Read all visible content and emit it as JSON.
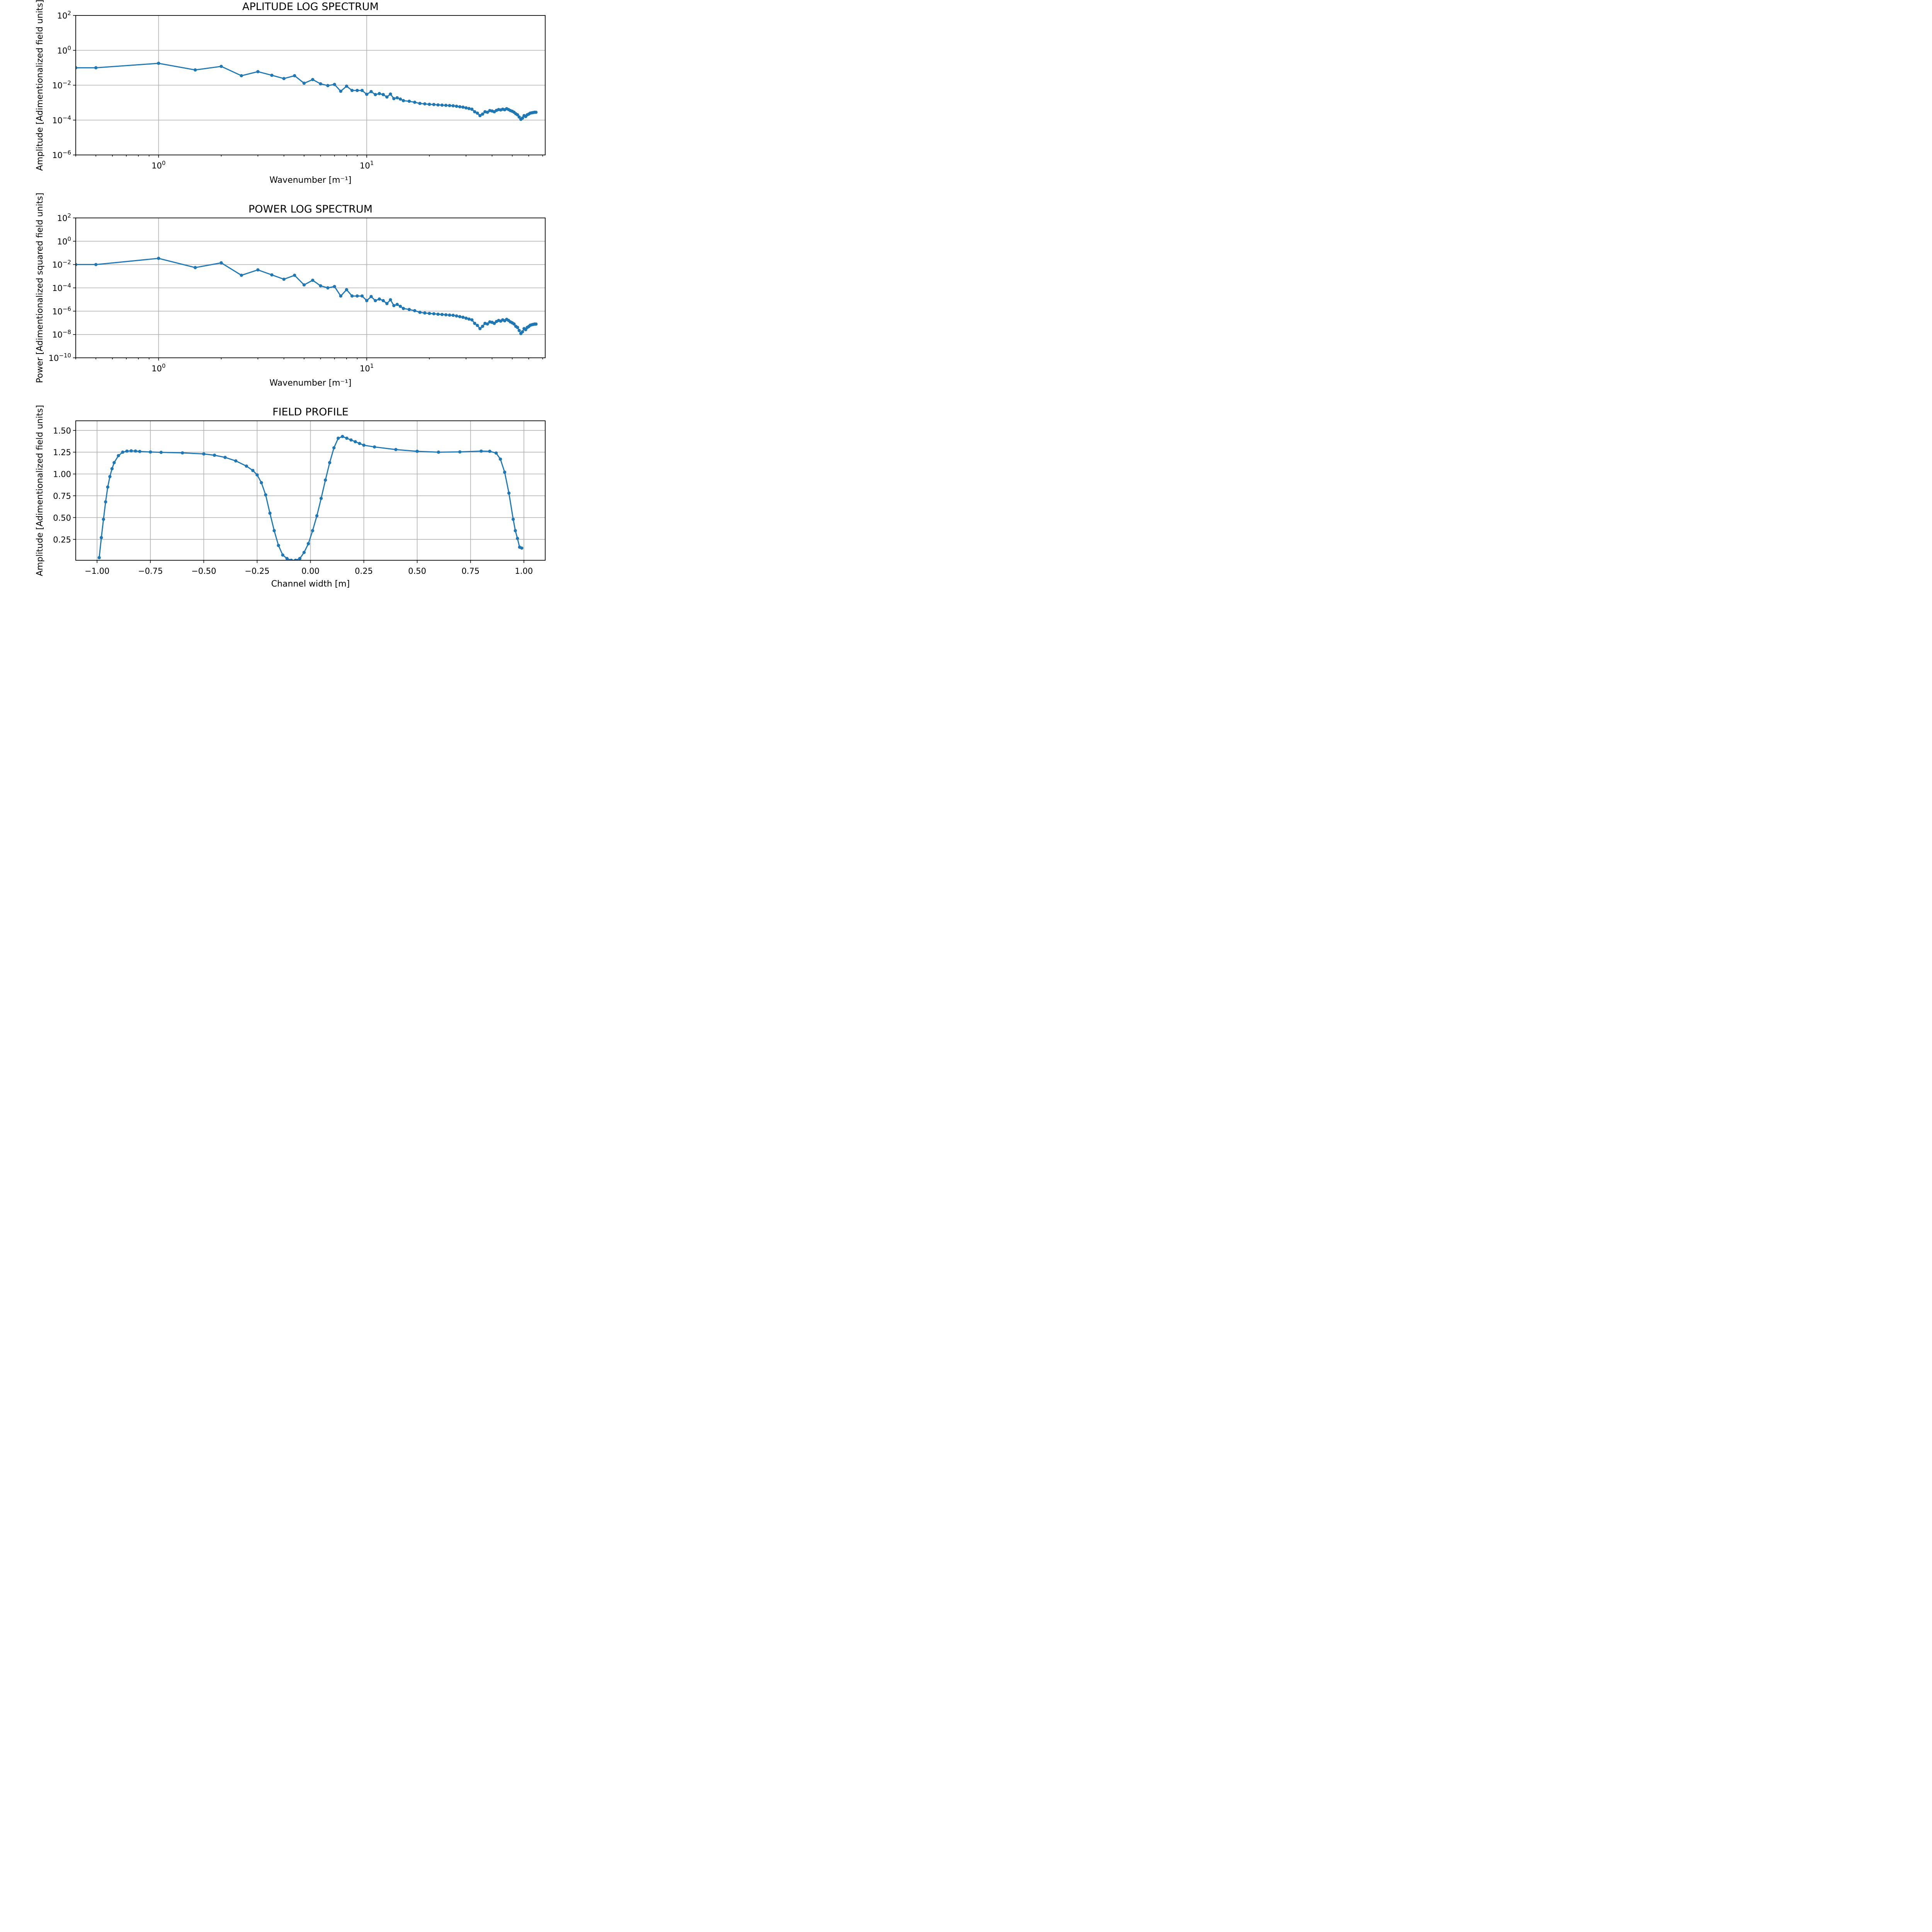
{
  "colors": {
    "series": "#1f77b4",
    "grid": "#b0b0b0"
  },
  "chart_data": [
    {
      "type": "line",
      "title": "APLITUDE LOG SPECTRUM",
      "xlabel": "Wavenumber [m⁻¹]",
      "ylabel": "Amplitude [Adimentionalized field units]",
      "xscale": "log",
      "yscale": "log",
      "xlim": [
        0.4,
        72
      ],
      "ylim": [
        1e-06,
        100
      ],
      "grid": true,
      "x_ticks": [
        1,
        10
      ],
      "x_ticklabels": [
        [
          "10",
          "0"
        ],
        [
          "10",
          "1"
        ]
      ],
      "y_ticks": [
        1e-06,
        0.0001,
        0.01,
        1,
        100
      ],
      "y_ticklabels": [
        [
          "10",
          "−6"
        ],
        [
          "10",
          "−4"
        ],
        [
          "10",
          "−2"
        ],
        [
          "10",
          "0"
        ],
        [
          "10",
          "2"
        ]
      ],
      "series": [
        {
          "x": [
            0.4,
            0.5,
            1.0,
            1.5,
            2.0,
            2.5,
            3.0,
            3.5,
            4.0,
            4.5,
            5.0,
            5.5,
            6.0,
            6.5,
            7.0,
            7.5,
            8.0,
            8.5,
            9.0,
            9.5,
            10,
            10.5,
            11,
            11.5,
            12,
            12.5,
            13,
            13.5,
            14,
            14.5,
            15,
            16,
            17,
            18,
            19,
            20,
            21,
            22,
            23,
            24,
            25,
            26,
            27,
            28,
            29,
            30,
            31,
            32,
            33,
            34,
            35,
            36,
            37,
            38,
            39,
            40,
            41,
            42,
            43,
            44,
            45,
            46,
            47,
            48,
            49,
            50,
            51,
            52,
            53,
            54,
            55,
            56,
            57,
            58,
            59,
            60,
            61,
            62,
            63,
            64,
            65
          ],
          "y": [
            0.1,
            0.1,
            0.18,
            0.075,
            0.12,
            0.035,
            0.06,
            0.037,
            0.024,
            0.035,
            0.013,
            0.021,
            0.012,
            0.0095,
            0.011,
            0.0045,
            0.0088,
            0.005,
            0.005,
            0.005,
            0.003,
            0.0043,
            0.0029,
            0.0033,
            0.0029,
            0.0021,
            0.0031,
            0.0017,
            0.0019,
            0.0016,
            0.0013,
            0.0012,
            0.00105,
            0.0009,
            0.00085,
            0.0008,
            0.00078,
            0.00074,
            0.00072,
            0.0007,
            0.00068,
            0.00066,
            0.00062,
            0.00058,
            0.00055,
            0.0005,
            0.00046,
            0.00042,
            0.0003,
            0.00025,
            0.00018,
            0.00022,
            0.0003,
            0.00028,
            0.00035,
            0.00033,
            0.0003,
            0.00036,
            0.0004,
            0.00038,
            0.00042,
            0.00039,
            0.00045,
            0.0004,
            0.00035,
            0.00032,
            0.00028,
            0.00023,
            0.0002,
            0.00015,
            0.00011,
            0.00013,
            0.00018,
            0.00016,
            0.0002,
            0.00022,
            0.00025,
            0.00026,
            0.00027,
            0.00028,
            0.00028
          ]
        }
      ]
    },
    {
      "type": "line",
      "title": "POWER LOG SPECTRUM",
      "xlabel": "Wavenumber [m⁻¹]",
      "ylabel": "Power [Adimentionalized squared field units]",
      "xscale": "log",
      "yscale": "log",
      "xlim": [
        0.4,
        72
      ],
      "ylim": [
        1e-10,
        100
      ],
      "grid": true,
      "x_ticks": [
        1,
        10
      ],
      "x_ticklabels": [
        [
          "10",
          "0"
        ],
        [
          "10",
          "1"
        ]
      ],
      "y_ticks": [
        1e-10,
        1e-08,
        1e-06,
        0.0001,
        0.01,
        1,
        100
      ],
      "y_ticklabels": [
        [
          "10",
          "−10"
        ],
        [
          "10",
          "−8"
        ],
        [
          "10",
          "−6"
        ],
        [
          "10",
          "−4"
        ],
        [
          "10",
          "−2"
        ],
        [
          "10",
          "0"
        ],
        [
          "10",
          "2"
        ]
      ],
      "series": [
        {
          "x": [
            0.4,
            0.5,
            1.0,
            1.5,
            2.0,
            2.5,
            3.0,
            3.5,
            4.0,
            4.5,
            5.0,
            5.5,
            6.0,
            6.5,
            7.0,
            7.5,
            8.0,
            8.5,
            9.0,
            9.5,
            10,
            10.5,
            11,
            11.5,
            12,
            12.5,
            13,
            13.5,
            14,
            14.5,
            15,
            16,
            17,
            18,
            19,
            20,
            21,
            22,
            23,
            24,
            25,
            26,
            27,
            28,
            29,
            30,
            31,
            32,
            33,
            34,
            35,
            36,
            37,
            38,
            39,
            40,
            41,
            42,
            43,
            44,
            45,
            46,
            47,
            48,
            49,
            50,
            51,
            52,
            53,
            54,
            55,
            56,
            57,
            58,
            59,
            60,
            61,
            62,
            63,
            64,
            65
          ],
          "y": [
            0.01,
            0.01,
            0.034,
            0.0055,
            0.014,
            0.0012,
            0.0035,
            0.0013,
            0.00055,
            0.0012,
            0.00018,
            0.00045,
            0.00015,
            0.0001,
            0.00013,
            2e-05,
            7e-05,
            2e-05,
            2e-05,
            2e-05,
            8e-06,
            1.8e-05,
            8e-06,
            1.1e-05,
            8e-06,
            4.5e-06,
            9.5e-06,
            3e-06,
            3.8e-06,
            2.6e-06,
            1.7e-06,
            1.4e-06,
            1.1e-06,
            8e-07,
            7e-07,
            6.4e-07,
            6e-07,
            5.5e-07,
            5.2e-07,
            4.9e-07,
            4.6e-07,
            4.4e-07,
            3.9e-07,
            3.4e-07,
            3e-07,
            2.5e-07,
            2.1e-07,
            1.8e-07,
            9e-08,
            6e-08,
            3.2e-08,
            5e-08,
            9e-08,
            8e-08,
            1.2e-07,
            1.1e-07,
            9e-08,
            1.3e-07,
            1.6e-07,
            1.4e-07,
            1.8e-07,
            1.5e-07,
            2e-07,
            1.6e-07,
            1.2e-07,
            1e-07,
            8e-08,
            5e-08,
            4e-08,
            2.2e-08,
            1.2e-08,
            1.7e-08,
            3.2e-08,
            2.6e-08,
            4e-08,
            4.8e-08,
            6.2e-08,
            6.8e-08,
            7.3e-08,
            7.8e-08,
            7.8e-08
          ]
        }
      ]
    },
    {
      "type": "line",
      "title": "FIELD PROFILE",
      "xlabel": "Channel width [m]",
      "ylabel": "Amplitude [Adimentionalized field units]",
      "xscale": "linear",
      "yscale": "linear",
      "xlim": [
        -1.1,
        1.1
      ],
      "ylim": [
        0.01,
        1.61
      ],
      "grid": true,
      "x_ticks": [
        -1.0,
        -0.75,
        -0.5,
        -0.25,
        0.0,
        0.25,
        0.5,
        0.75,
        1.0
      ],
      "x_ticklabels": [
        "−1.00",
        "−0.75",
        "−0.50",
        "−0.25",
        "0.00",
        "0.25",
        "0.50",
        "0.75",
        "1.00"
      ],
      "y_ticks": [
        0.25,
        0.5,
        0.75,
        1.0,
        1.25,
        1.5
      ],
      "y_ticklabels": [
        "0.25",
        "0.50",
        "0.75",
        "1.00",
        "1.25",
        "1.50"
      ],
      "series": [
        {
          "x": [
            -0.99,
            -0.98,
            -0.97,
            -0.96,
            -0.95,
            -0.94,
            -0.93,
            -0.92,
            -0.9,
            -0.88,
            -0.86,
            -0.84,
            -0.82,
            -0.8,
            -0.75,
            -0.7,
            -0.6,
            -0.5,
            -0.45,
            -0.4,
            -0.35,
            -0.3,
            -0.27,
            -0.25,
            -0.23,
            -0.21,
            -0.19,
            -0.17,
            -0.15,
            -0.13,
            -0.11,
            -0.09,
            -0.07,
            -0.05,
            -0.03,
            -0.01,
            0.01,
            0.03,
            0.05,
            0.07,
            0.09,
            0.11,
            0.13,
            0.15,
            0.17,
            0.19,
            0.21,
            0.23,
            0.25,
            0.3,
            0.4,
            0.5,
            0.6,
            0.7,
            0.8,
            0.84,
            0.87,
            0.89,
            0.91,
            0.93,
            0.95,
            0.96,
            0.97,
            0.98,
            0.99
          ],
          "y": [
            0.04,
            0.27,
            0.48,
            0.68,
            0.85,
            0.97,
            1.06,
            1.13,
            1.21,
            1.25,
            1.262,
            1.265,
            1.263,
            1.258,
            1.252,
            1.248,
            1.242,
            1.23,
            1.215,
            1.19,
            1.15,
            1.09,
            1.04,
            0.99,
            0.9,
            0.76,
            0.55,
            0.35,
            0.18,
            0.07,
            0.03,
            0.01,
            0.01,
            0.03,
            0.1,
            0.2,
            0.35,
            0.52,
            0.72,
            0.93,
            1.13,
            1.3,
            1.41,
            1.43,
            1.41,
            1.39,
            1.37,
            1.35,
            1.33,
            1.31,
            1.28,
            1.26,
            1.25,
            1.253,
            1.262,
            1.26,
            1.24,
            1.17,
            1.02,
            0.78,
            0.48,
            0.35,
            0.26,
            0.16,
            0.15
          ]
        }
      ]
    }
  ]
}
